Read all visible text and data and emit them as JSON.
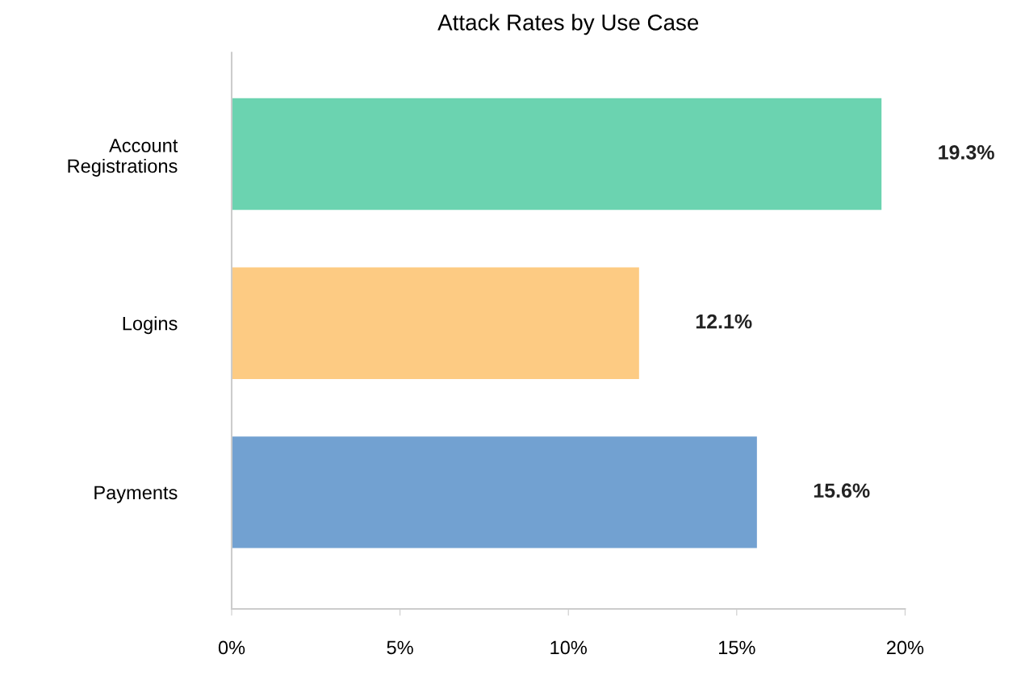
{
  "chart_data": {
    "type": "bar",
    "orientation": "horizontal",
    "title": "Attack Rates by Use Case",
    "categories": [
      "Account\nRegistrations",
      "Logins",
      "Payments"
    ],
    "values": [
      19.3,
      12.1,
      15.6
    ],
    "colors": [
      "#6bd3b0",
      "#fdcb83",
      "#72a1d1"
    ],
    "value_labels": [
      "19.3%",
      "12.1%",
      "15.6%"
    ],
    "xlim": [
      0,
      20
    ],
    "xticks": [
      {
        "value": 0,
        "label": "0%"
      },
      {
        "value": 5,
        "label": "5%"
      },
      {
        "value": 10,
        "label": "10%"
      },
      {
        "value": 15,
        "label": "15%"
      },
      {
        "value": 20,
        "label": "20%"
      }
    ],
    "grid": false,
    "legend": false
  }
}
